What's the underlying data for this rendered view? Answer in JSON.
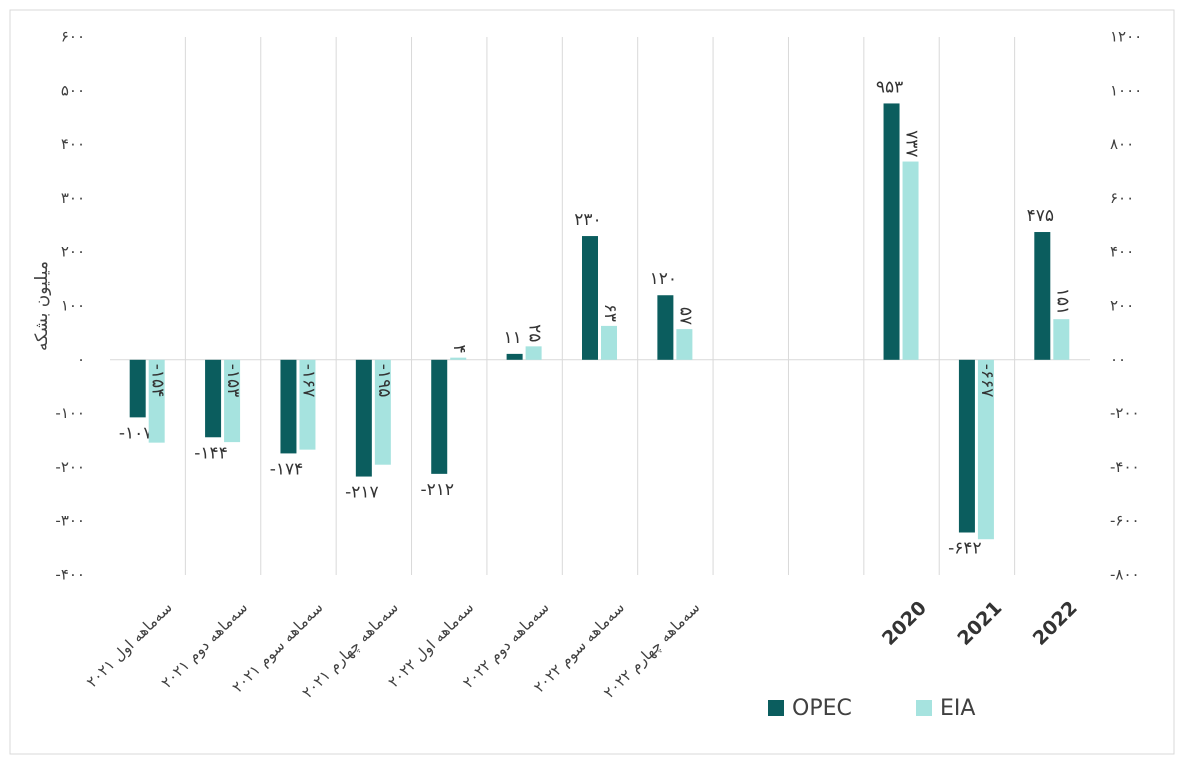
{
  "chart_data": {
    "type": "bar",
    "y_label": "میلیون بشکه",
    "categories": [
      "سه‌ماهه اول ۲۰۲۱",
      "سه‌ماهه دوم ۲۰۲۱",
      "سه‌ماهه سوم ۲۰۲۱",
      "سه‌ماهه چهارم ۲۰۲۱",
      "سه‌ماهه اول ۲۰۲۲",
      "سه‌ماهه دوم ۲۰۲۲",
      "سه‌ماهه سوم ۲۰۲۲",
      "سه‌ماهه چهارم ۲۰۲۲",
      null,
      null,
      "2020",
      "2021",
      "2022"
    ],
    "series": [
      {
        "name": "OPEC",
        "color": "#0b5d5e",
        "values": [
          -107,
          -144,
          -174,
          -217,
          -212,
          11,
          230,
          120,
          null,
          null,
          null,
          null,
          null
        ],
        "value_labels": [
          "-۱۰۷",
          "-۱۴۴",
          "-۱۷۴",
          "-۲۱۷",
          "-۲۱۲",
          "۱۱",
          "۲۳۰",
          "۱۲۰",
          null,
          null,
          null,
          null,
          null
        ]
      },
      {
        "name": "EIA",
        "color": "#a6e3df",
        "values": [
          -154,
          -153,
          -167,
          -195,
          4,
          25,
          63,
          57,
          null,
          null,
          null,
          null,
          null
        ],
        "value_labels": [
          "-۱۵۴",
          "-۱۵۳",
          "-۱۶۷",
          "-۱۹۵",
          "۴",
          "۲۵",
          "۶۳",
          "۵۷",
          null,
          null,
          null,
          null,
          null
        ]
      },
      {
        "axis": "y2",
        "color": "#0b5d5e",
        "values": [
          null,
          null,
          null,
          null,
          null,
          null,
          null,
          null,
          null,
          null,
          953,
          -642,
          475
        ],
        "value_labels": [
          null,
          null,
          null,
          null,
          null,
          null,
          null,
          null,
          null,
          null,
          "۹۵۳",
          "-۶۴۲",
          "۴۷۵"
        ]
      },
      {
        "axis": "y2",
        "color": "#a6e3df",
        "values": [
          null,
          null,
          null,
          null,
          null,
          null,
          null,
          null,
          null,
          null,
          737,
          -667,
          151
        ],
        "value_labels": [
          null,
          null,
          null,
          null,
          null,
          null,
          null,
          null,
          null,
          null,
          "۷۳۷",
          "-۶۶۷",
          "۱۵۱"
        ]
      }
    ],
    "ylim": [
      -400,
      600
    ],
    "yticks": [
      {
        "value": -400,
        "label": "-۴۰۰"
      },
      {
        "value": -300,
        "label": "-۳۰۰"
      },
      {
        "value": -200,
        "label": "-۲۰۰"
      },
      {
        "value": -100,
        "label": "-۱۰۰"
      },
      {
        "value": 0,
        "label": "۰"
      },
      {
        "value": 100,
        "label": "۱۰۰"
      },
      {
        "value": 200,
        "label": "۲۰۰"
      },
      {
        "value": 300,
        "label": "۳۰۰"
      },
      {
        "value": 400,
        "label": "۴۰۰"
      },
      {
        "value": 500,
        "label": "۵۰۰"
      },
      {
        "value": 600,
        "label": "۶۰۰"
      }
    ],
    "y2lim": [
      -800,
      1200
    ],
    "y2ticks": [
      {
        "value": -800,
        "label": "-۸۰۰"
      },
      {
        "value": -600,
        "label": "-۶۰۰"
      },
      {
        "value": -400,
        "label": "-۴۰۰"
      },
      {
        "value": -200,
        "label": "-۲۰۰"
      },
      {
        "value": 0,
        "label": "۰۰"
      },
      {
        "value": 200,
        "label": "۲۰۰"
      },
      {
        "value": 400,
        "label": "۴۰۰"
      },
      {
        "value": 600,
        "label": "۶۰۰"
      },
      {
        "value": 800,
        "label": "۸۰۰"
      },
      {
        "value": 1000,
        "label": "۱۰۰۰"
      },
      {
        "value": 1200,
        "label": "۱۲۰۰"
      }
    ],
    "legend": "bottom"
  }
}
